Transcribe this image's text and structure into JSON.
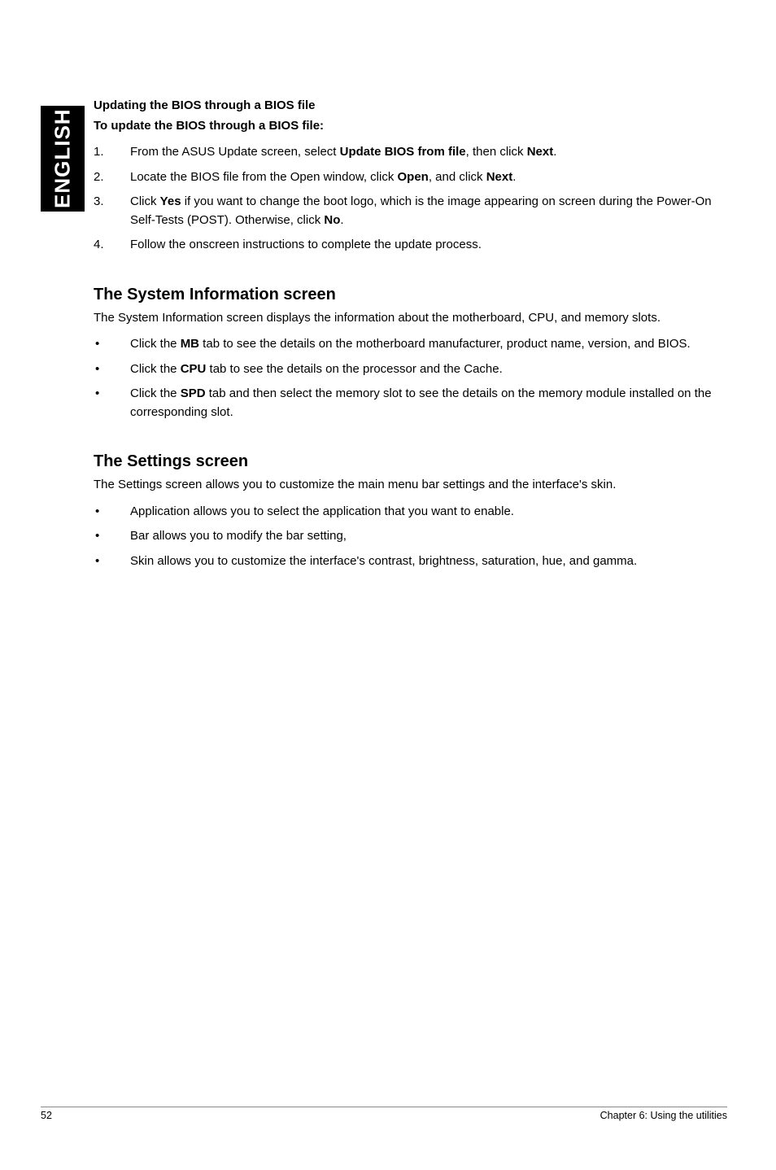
{
  "sidebar": {
    "label": "ENGLISH"
  },
  "section1": {
    "title1": "Updating the BIOS through a BIOS file",
    "title2": "To update the BIOS through a BIOS file:",
    "items": [
      {
        "num": "1.",
        "prefix": "From the ASUS Update screen, select ",
        "bold1": "Update BIOS from file",
        "mid1": ", then click ",
        "bold2": "Next",
        "suffix": "."
      },
      {
        "num": "2.",
        "prefix": "Locate the BIOS file from the Open window, click ",
        "bold1": "Open",
        "mid1": ", and click ",
        "bold2": "Next",
        "suffix": "."
      },
      {
        "num": "3.",
        "prefix": "Click ",
        "bold1": "Yes",
        "mid1": " if you want to change the boot logo, which is the image appearing on screen during the Power-On Self-Tests (POST). Otherwise, click ",
        "bold2": "No",
        "suffix": "."
      },
      {
        "num": "4.",
        "prefix": "Follow the onscreen instructions to complete the update process."
      }
    ]
  },
  "section2": {
    "heading": "The System Information screen",
    "desc": "The System Information screen displays the information about the motherboard, CPU, and memory slots.",
    "items": [
      {
        "prefix": "Click the ",
        "bold1": "MB",
        "suffix": " tab to see the details on the motherboard manufacturer, product name, version, and BIOS."
      },
      {
        "prefix": "Click the ",
        "bold1": "CPU",
        "suffix": " tab to see the details on the processor and the Cache."
      },
      {
        "prefix": "Click the ",
        "bold1": "SPD",
        "suffix": " tab and then select the memory slot to see the details on the memory module installed on the corresponding slot."
      }
    ]
  },
  "section3": {
    "heading": "The Settings screen",
    "desc": "The Settings screen allows you to customize the main menu bar settings and the interface's skin.",
    "items": [
      {
        "text": "Application allows you to select the application that you want to enable."
      },
      {
        "text": "Bar allows you to modify the bar setting,"
      },
      {
        "text": "Skin allows you to customize the interface's contrast, brightness, saturation, hue, and gamma."
      }
    ]
  },
  "footer": {
    "page": "52",
    "chapter": "Chapter 6: Using the utilities"
  }
}
